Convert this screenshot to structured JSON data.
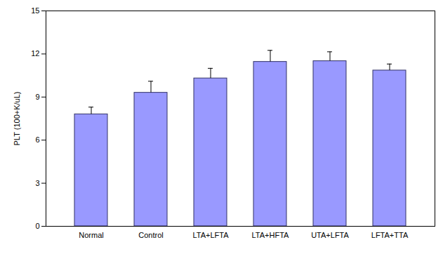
{
  "chart_data": {
    "type": "bar",
    "categories": [
      "Normal",
      "Control",
      "LTA+LFTA",
      "LTA+HFTA",
      "UTA+LFTA",
      "LFTA+TTA"
    ],
    "values": [
      7.8,
      9.3,
      10.3,
      11.45,
      11.5,
      10.85
    ],
    "errors": [
      0.5,
      0.8,
      0.7,
      0.8,
      0.65,
      0.45
    ],
    "color": "#9999ff",
    "ylabel": "PLT (100+K/uL)",
    "ylim": [
      0,
      15
    ],
    "yticks": [
      0,
      3,
      6,
      9,
      12,
      15
    ],
    "grid": false
  }
}
